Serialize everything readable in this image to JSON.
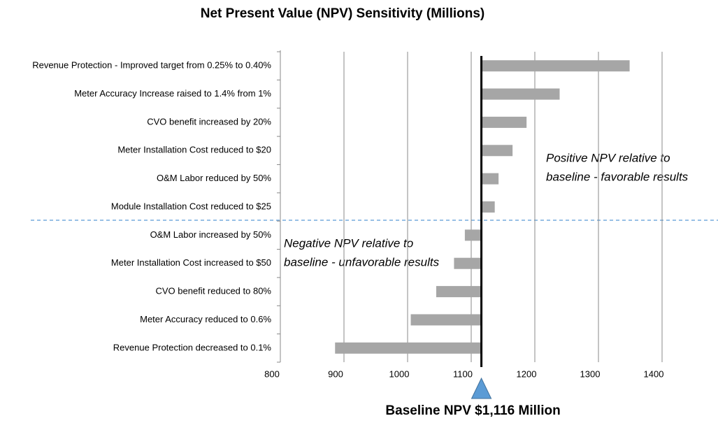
{
  "chart_data": {
    "type": "tornado",
    "title": "Net Present Value (NPV) Sensitivity (Millions)",
    "categories": [
      "Revenue Protection - Improved target from 0.25% to 0.40%",
      "Meter Accuracy Increase raised to 1.4% from 1%",
      "CVO benefit increased by 20%",
      "Meter Installation Cost reduced to $20",
      "O&M Labor reduced by 50%",
      "Module Installation Cost reduced to $25",
      "O&M Labor increased by 50%",
      "Meter Installation Cost increased to $50",
      "CVO benefit reduced to 80%",
      "Meter Accuracy reduced to 0.6%",
      "Revenue Protection decreased to 0.1%"
    ],
    "values": [
      1349,
      1239,
      1187,
      1165,
      1143,
      1137,
      1090,
      1073,
      1045,
      1005,
      886
    ],
    "color": "#a6a6a6",
    "baseline": 1116,
    "baseline_label": "Baseline NPV $1,116 Million",
    "annotations": [
      "Positive NPV relative to",
      "baseline - favorable results",
      "Negative NPV relative to",
      "baseline - unfavorable results"
    ],
    "xlim": [
      800,
      1400
    ],
    "xticks": [
      800,
      900,
      1000,
      1100,
      1200,
      1300,
      1400
    ],
    "grid": true
  }
}
